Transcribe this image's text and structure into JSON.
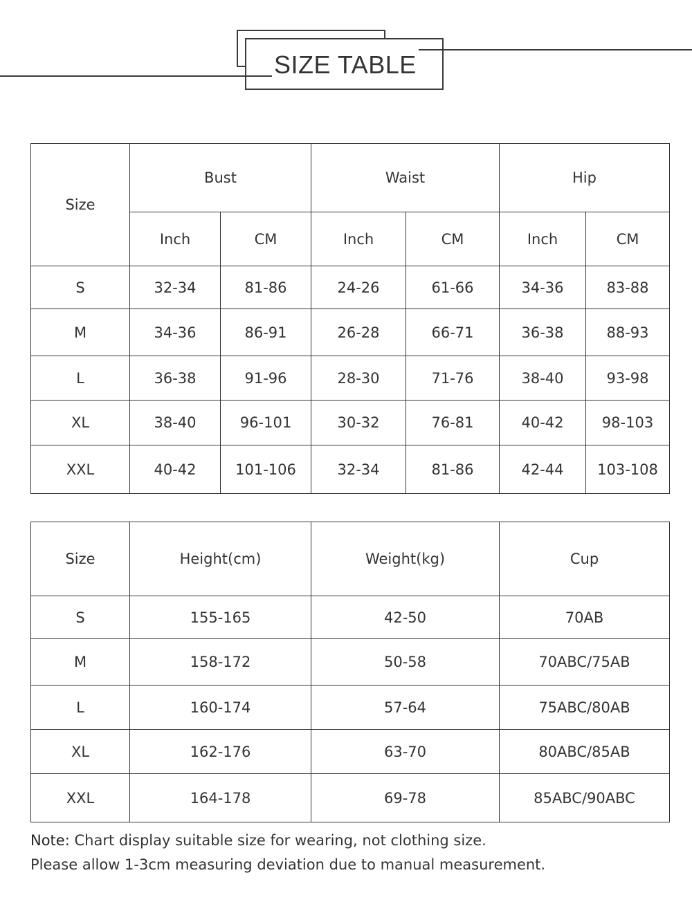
{
  "header": {
    "title": "SIZE TABLE"
  },
  "table1": {
    "size_label": "Size",
    "groups": [
      "Bust",
      "Waist",
      "Hip"
    ],
    "units": [
      "Inch",
      "CM",
      "Inch",
      "CM",
      "Inch",
      "CM"
    ],
    "rows": [
      [
        "S",
        "32-34",
        "81-86",
        "24-26",
        "61-66",
        "34-36",
        "83-88"
      ],
      [
        "M",
        "34-36",
        "86-91",
        "26-28",
        "66-71",
        "36-38",
        "88-93"
      ],
      [
        "L",
        "36-38",
        "91-96",
        "28-30",
        "71-76",
        "38-40",
        "93-98"
      ],
      [
        "XL",
        "38-40",
        "96-101",
        "30-32",
        "76-81",
        "40-42",
        "98-103"
      ],
      [
        "XXL",
        "40-42",
        "101-106",
        "32-34",
        "81-86",
        "42-44",
        "103-108"
      ]
    ]
  },
  "table2": {
    "headers": [
      "Size",
      "Height(cm)",
      "Weight(kg)",
      "Cup"
    ],
    "rows": [
      [
        "S",
        "155-165",
        "42-50",
        "70AB"
      ],
      [
        "M",
        "158-172",
        "50-58",
        "70ABC/75AB"
      ],
      [
        "L",
        "160-174",
        "57-64",
        "75ABC/80AB"
      ],
      [
        "XL",
        "162-176",
        "63-70",
        "80ABC/85AB"
      ],
      [
        "XXL",
        "164-178",
        "69-78",
        "85ABC/90ABC"
      ]
    ]
  },
  "note": {
    "label": "Note:",
    "line1": " Chart display suitable size for wearing, not clothing size.",
    "line2": "Please allow 1-3cm measuring deviation due to manual measurement."
  }
}
